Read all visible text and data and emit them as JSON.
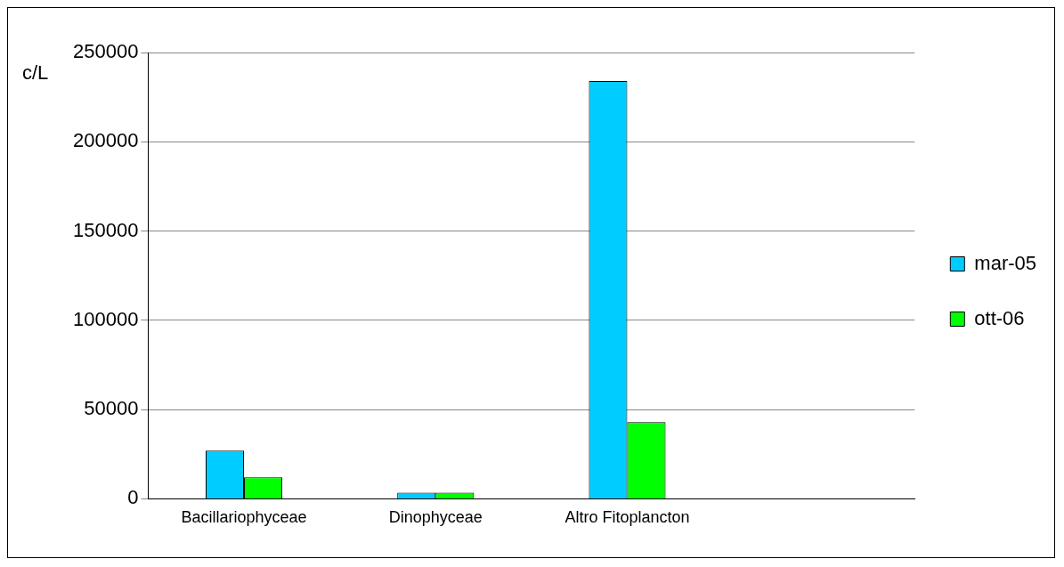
{
  "chart_data": {
    "type": "bar",
    "ylabel": "c/L",
    "categories": [
      "Bacillariophyceae",
      "Dinophyceae",
      "Altro Fitoplancton",
      null
    ],
    "series": [
      {
        "name": "mar-05",
        "color": "#00ccff",
        "values": [
          27000,
          3500,
          234000,
          null
        ]
      },
      {
        "name": "ott-06",
        "color": "#00ff00",
        "values": [
          12000,
          3500,
          43000,
          null
        ]
      }
    ],
    "ylim": [
      0,
      250000
    ],
    "yticks": [
      0,
      50000,
      100000,
      150000,
      200000,
      250000
    ],
    "grid": "y",
    "legend": "right"
  }
}
